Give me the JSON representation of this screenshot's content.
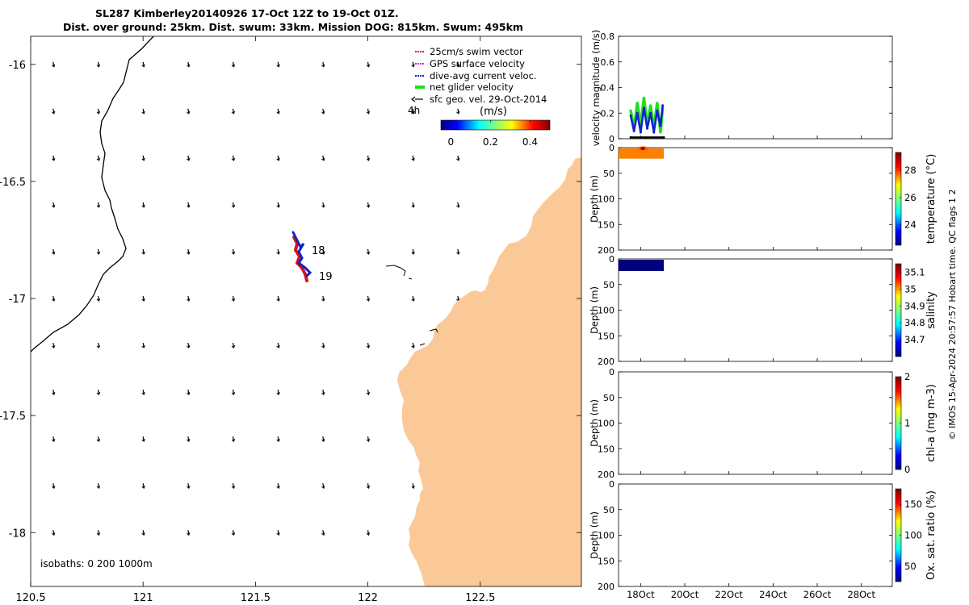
{
  "title": {
    "line1": "SL287 Kimberley20140926 17-Oct 12Z to 19-Oct 01Z.",
    "line2": "Dist. over ground: 25km. Dist. swum: 33km. Mission DOG: 815km. Swum: 495km"
  },
  "colors": {
    "land": "#fbc998",
    "swim": "#e01010",
    "gps": "#d020d0",
    "diveavg": "#1020d0",
    "net": "#22dd22",
    "geo": "#000000"
  },
  "map": {
    "xlim": [
      120.5,
      122.95
    ],
    "ylim": [
      -18.23,
      -15.88
    ],
    "xticks": [
      "120.5",
      "121",
      "121.5",
      "122",
      "122.5"
    ],
    "yticks": [
      "-16",
      "-16.5",
      "-17",
      "-17.5",
      "-18"
    ],
    "day_labels": [
      "18",
      "19"
    ],
    "time_label": "4h",
    "isobaths_label": "isobaths: 0   200  1000m",
    "legend": [
      {
        "key": "swim",
        "label": "25cm/s swim vector"
      },
      {
        "key": "gps",
        "label": "GPS surface velocity"
      },
      {
        "key": "diveavg",
        "label": "dive-avg current veloc."
      },
      {
        "key": "net",
        "label": "net glider velocity"
      },
      {
        "key": "geo",
        "label": "sfc geo. vel. 29-Oct-2014"
      }
    ],
    "colorbar": {
      "label": "(m/s)",
      "ticks": [
        "0",
        "0.2",
        "0.4"
      ],
      "range": [
        -0.05,
        0.5
      ]
    }
  },
  "chart_data": [
    {
      "type": "line",
      "title": "velocity magnitude",
      "ylabel": "velocity magnitude (m/s)",
      "ylim": [
        0,
        0.8
      ],
      "yticks": [
        "0",
        "0.2",
        "0.4",
        "0.6",
        "0.8"
      ],
      "x_range_days": [
        17,
        29.4
      ],
      "series": [
        {
          "name": "net glider velocity",
          "color": "#22dd22",
          "x": [
            17.55,
            17.7,
            17.85,
            18.0,
            18.15,
            18.3,
            18.45,
            18.6,
            18.75,
            18.9,
            19.0
          ],
          "y": [
            0.22,
            0.08,
            0.28,
            0.1,
            0.32,
            0.1,
            0.26,
            0.08,
            0.28,
            0.05,
            0.24
          ]
        },
        {
          "name": "dive-avg current veloc.",
          "color": "#1020d0",
          "x": [
            17.55,
            17.7,
            17.85,
            18.0,
            18.15,
            18.3,
            18.45,
            18.6,
            18.75,
            18.9,
            19.0
          ],
          "y": [
            0.18,
            0.06,
            0.2,
            0.05,
            0.24,
            0.08,
            0.2,
            0.05,
            0.22,
            0.1,
            0.26
          ]
        },
        {
          "name": "sfc geo. vel.",
          "color": "#000000",
          "x": [
            17.55,
            19.05
          ],
          "y": [
            0.01,
            0.01
          ]
        }
      ]
    },
    {
      "type": "heatmap",
      "ylabel": "Depth (m)",
      "cblabel": "temperature (°C)",
      "ylim": [
        200,
        0
      ],
      "yticks": [
        "0",
        "50",
        "100",
        "150",
        "200"
      ],
      "cbticks": [
        "24",
        "26",
        "28"
      ],
      "cbrange": [
        22.5,
        29.3
      ],
      "value": 27.6
    },
    {
      "type": "heatmap",
      "ylabel": "Depth (m)",
      "cblabel": "salinity",
      "ylim": [
        200,
        0
      ],
      "yticks": [
        "0",
        "50",
        "100",
        "150",
        "200"
      ],
      "cbticks": [
        "34.7",
        "34.8",
        "34.9",
        "35",
        "35.1"
      ],
      "cbrange": [
        34.6,
        35.15
      ],
      "value": 34.6
    },
    {
      "type": "heatmap",
      "ylabel": "Depth (m)",
      "cblabel": "chl-a (mg m-3)",
      "ylim": [
        200,
        0
      ],
      "yticks": [
        "0",
        "50",
        "100",
        "150",
        "200"
      ],
      "cbticks": [
        "0",
        "1",
        "2"
      ],
      "cbrange": [
        0,
        2
      ]
    },
    {
      "type": "heatmap",
      "ylabel": "Depth (m)",
      "cblabel": "Ox. sat. ratio (%)",
      "ylim": [
        200,
        0
      ],
      "yticks": [
        "0",
        "50",
        "100",
        "150",
        "200"
      ],
      "cbticks": [
        "50",
        "100",
        "150"
      ],
      "cbrange": [
        25,
        175
      ]
    }
  ],
  "time_axis": {
    "labels": [
      "18Oct",
      "20Oct",
      "22Oct",
      "24Oct",
      "26Oct",
      "28Oct"
    ],
    "days": [
      18,
      20,
      22,
      24,
      26,
      28
    ]
  },
  "footer": "© IMOS 15-Apr-2024 20:57:57 Hobart time. QC flags 1  2"
}
